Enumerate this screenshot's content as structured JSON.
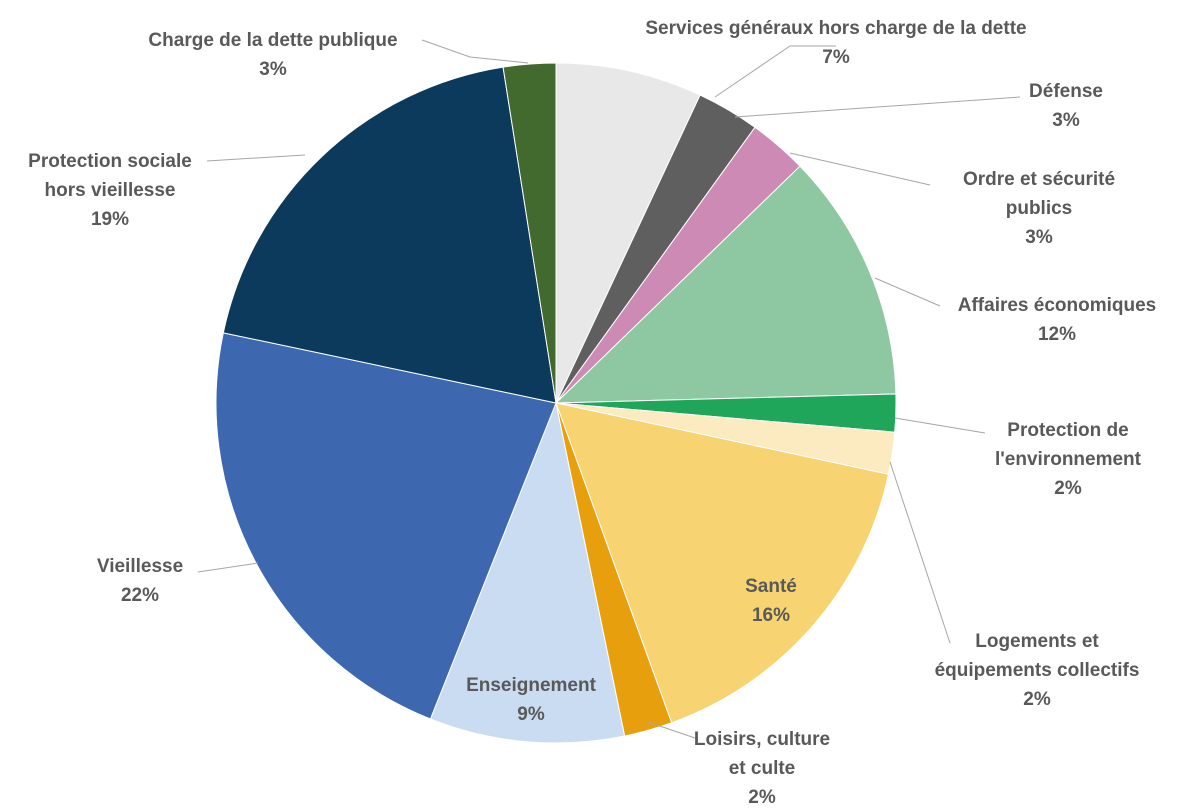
{
  "chart_data": {
    "type": "pie",
    "title": "",
    "slices": [
      {
        "name": "Services généraux hors charge de la dette",
        "label_lines": [
          "Services généraux hors charge de la dette"
        ],
        "pct_label": "7%",
        "value": 7.0,
        "color": "#e8e8e8",
        "inside": false
      },
      {
        "name": "Défense",
        "label_lines": [
          "Défense"
        ],
        "pct_label": "3%",
        "value": 3.0,
        "color": "#5f5f5f",
        "inside": false
      },
      {
        "name": "Ordre et sécurité publics",
        "label_lines": [
          "Ordre et sécurité",
          "publics"
        ],
        "pct_label": "3%",
        "value": 2.8,
        "color": "#cc8ab4",
        "inside": false
      },
      {
        "name": "Affaires économiques",
        "label_lines": [
          "Affaires économiques"
        ],
        "pct_label": "12%",
        "value": 11.9,
        "color": "#8ec8a2",
        "inside": false
      },
      {
        "name": "Protection de l'environnement",
        "label_lines": [
          "Protection de",
          "l'environnement"
        ],
        "pct_label": "2%",
        "value": 1.8,
        "color": "#20a65a",
        "inside": false
      },
      {
        "name": "Logements et équipements collectifs",
        "label_lines": [
          "Logements et",
          "équipements collectifs"
        ],
        "pct_label": "2%",
        "value": 2.0,
        "color": "#fcebc0",
        "inside": false
      },
      {
        "name": "Santé",
        "label_lines": [
          "Santé"
        ],
        "pct_label": "16%",
        "value": 16.2,
        "color": "#f7d471",
        "inside": true
      },
      {
        "name": "Loisirs, culture et culte",
        "label_lines": [
          "Loisirs, culture",
          "et culte"
        ],
        "pct_label": "2%",
        "value": 2.3,
        "color": "#e89f0e",
        "inside": false
      },
      {
        "name": "Enseignement",
        "label_lines": [
          "Enseignement"
        ],
        "pct_label": "9%",
        "value": 9.3,
        "color": "#cadcf1",
        "inside": true
      },
      {
        "name": "Vieillesse",
        "label_lines": [
          "Vieillesse"
        ],
        "pct_label": "22%",
        "value": 22.4,
        "color": "#3d68b0",
        "inside": false
      },
      {
        "name": "Protection sociale hors vieillesse",
        "label_lines": [
          "Protection sociale",
          "hors vieillesse"
        ],
        "pct_label": "19%",
        "value": 19.3,
        "color": "#0b3a5c",
        "inside": false
      },
      {
        "name": "Charge de la dette publique",
        "label_lines": [
          "Charge de la dette publique"
        ],
        "pct_label": "3%",
        "value": 2.5,
        "color": "#436a2e",
        "inside": false
      }
    ],
    "legend": "none",
    "label_color": "#595959"
  }
}
